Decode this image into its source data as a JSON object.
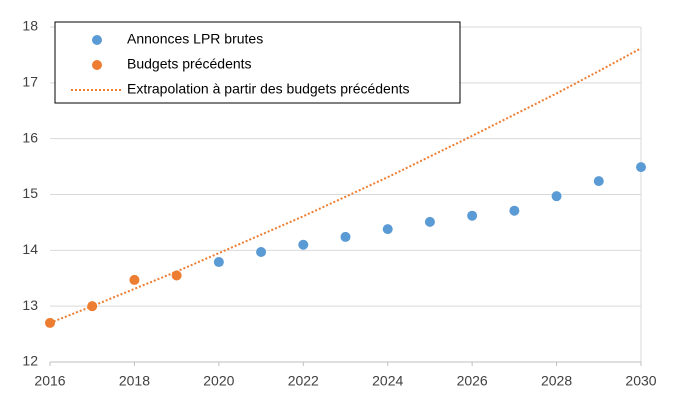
{
  "chart_data": {
    "type": "scatter",
    "xlim": [
      2016,
      2030
    ],
    "xticks": [
      2016,
      2018,
      2020,
      2022,
      2024,
      2026,
      2028,
      2030
    ],
    "ylim": [
      12,
      18
    ],
    "yticks": [
      12,
      13,
      14,
      15,
      16,
      17,
      18
    ],
    "grid": true,
    "legend": "upper left",
    "series": [
      {
        "name": "Annonces LPR brutes",
        "type": "scatter",
        "color": "#5b9bd5",
        "x": [
          2020,
          2021,
          2022,
          2023,
          2024,
          2025,
          2026,
          2027,
          2028,
          2029,
          2030
        ],
        "values": [
          13.79,
          13.97,
          14.1,
          14.24,
          14.38,
          14.51,
          14.62,
          14.71,
          14.97,
          15.24,
          15.49
        ]
      },
      {
        "name": "Budgets précédents",
        "type": "scatter",
        "color": "#ed7d31",
        "x": [
          2016,
          2017,
          2018,
          2019
        ],
        "values": [
          12.7,
          13.0,
          13.47,
          13.55
        ]
      },
      {
        "name": "Extrapolation à partir des budgets précédents",
        "type": "line",
        "dash": "dotted",
        "color": "#ed7d31",
        "x": [
          2016,
          2017,
          2018,
          2019,
          2020,
          2021,
          2022,
          2023,
          2024,
          2025,
          2026,
          2027,
          2028,
          2029,
          2030
        ],
        "values": [
          12.7,
          13.0,
          13.31,
          13.62,
          13.95,
          14.28,
          14.61,
          14.96,
          15.31,
          15.68,
          16.05,
          16.43,
          16.81,
          17.21,
          17.62
        ]
      }
    ]
  }
}
